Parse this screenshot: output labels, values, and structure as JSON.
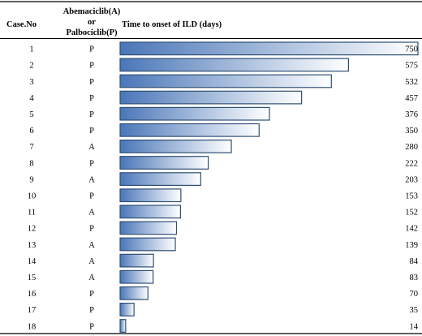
{
  "chart_data": {
    "type": "bar",
    "orientation": "horizontal",
    "headers": {
      "case": "Case.No",
      "drug_line1": "Abemaciclib(A)",
      "drug_line2": "or",
      "drug_line3": "Palbociclib(P)",
      "time": "Time to onset of ILD (days)"
    },
    "rows": [
      {
        "case": "1",
        "drug": "P",
        "days": 750
      },
      {
        "case": "2",
        "drug": "P",
        "days": 575
      },
      {
        "case": "3",
        "drug": "P",
        "days": 532
      },
      {
        "case": "4",
        "drug": "P",
        "days": 457
      },
      {
        "case": "5",
        "drug": "P",
        "days": 376
      },
      {
        "case": "6",
        "drug": "P",
        "days": 350
      },
      {
        "case": "7",
        "drug": "A",
        "days": 280
      },
      {
        "case": "8",
        "drug": "P",
        "days": 222
      },
      {
        "case": "9",
        "drug": "A",
        "days": 203
      },
      {
        "case": "10",
        "drug": "P",
        "days": 153
      },
      {
        "case": "11",
        "drug": "A",
        "days": 152
      },
      {
        "case": "12",
        "drug": "P",
        "days": 142
      },
      {
        "case": "13",
        "drug": "A",
        "days": 139
      },
      {
        "case": "14",
        "drug": "A",
        "days": 84
      },
      {
        "case": "15",
        "drug": "A",
        "days": 83
      },
      {
        "case": "16",
        "drug": "P",
        "days": 70
      },
      {
        "case": "17",
        "drug": "P",
        "days": 35
      },
      {
        "case": "18",
        "drug": "P",
        "days": 14
      }
    ],
    "xlim": [
      0,
      750
    ],
    "grid": false,
    "bar_color_start": "#4a76b8",
    "bar_color_end": "#ffffff",
    "bar_border": "#2f4f74"
  }
}
